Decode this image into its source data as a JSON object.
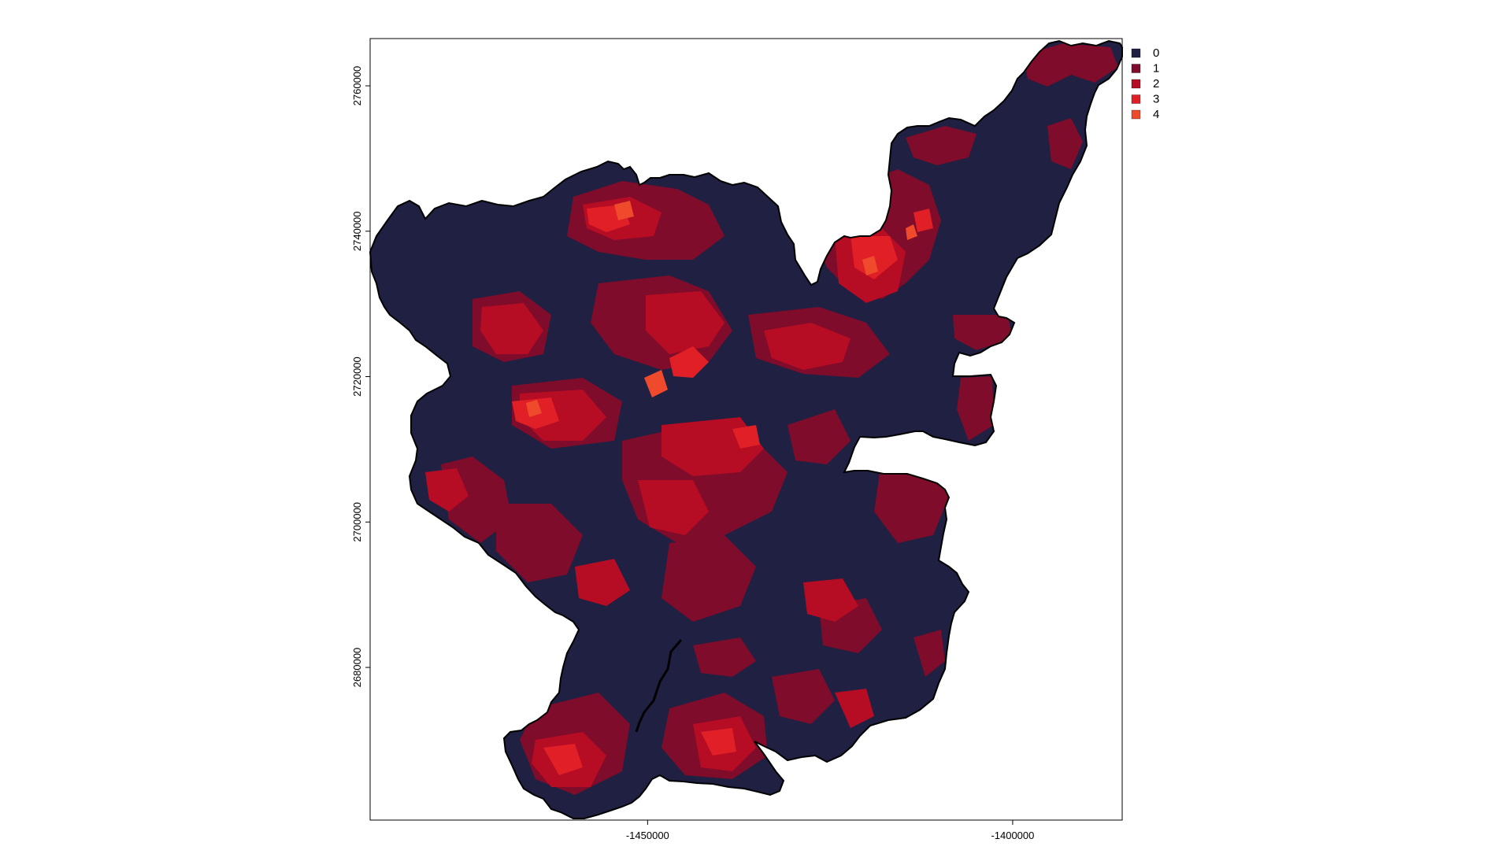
{
  "map": {
    "x_ticks": [
      {
        "value": -1450000,
        "label": "-1450000"
      },
      {
        "value": -1400000,
        "label": "-1400000"
      }
    ],
    "y_ticks": [
      {
        "value": 2680000,
        "label": "2680000"
      },
      {
        "value": 2700000,
        "label": "2700000"
      },
      {
        "value": 2720000,
        "label": "2720000"
      },
      {
        "value": 2740000,
        "label": "2740000"
      },
      {
        "value": 2760000,
        "label": "2760000"
      }
    ],
    "x_range": [
      -1488000,
      -1385000
    ],
    "y_range": [
      2659000,
      2766500
    ],
    "legend": [
      {
        "label": "0",
        "color": "#1f2042"
      },
      {
        "label": "1",
        "color": "#7e0c2a"
      },
      {
        "label": "2",
        "color": "#b60c24"
      },
      {
        "label": "3",
        "color": "#e01f26"
      },
      {
        "label": "4",
        "color": "#f04a2c"
      }
    ],
    "legend_placement": "top-right, outside panel"
  }
}
